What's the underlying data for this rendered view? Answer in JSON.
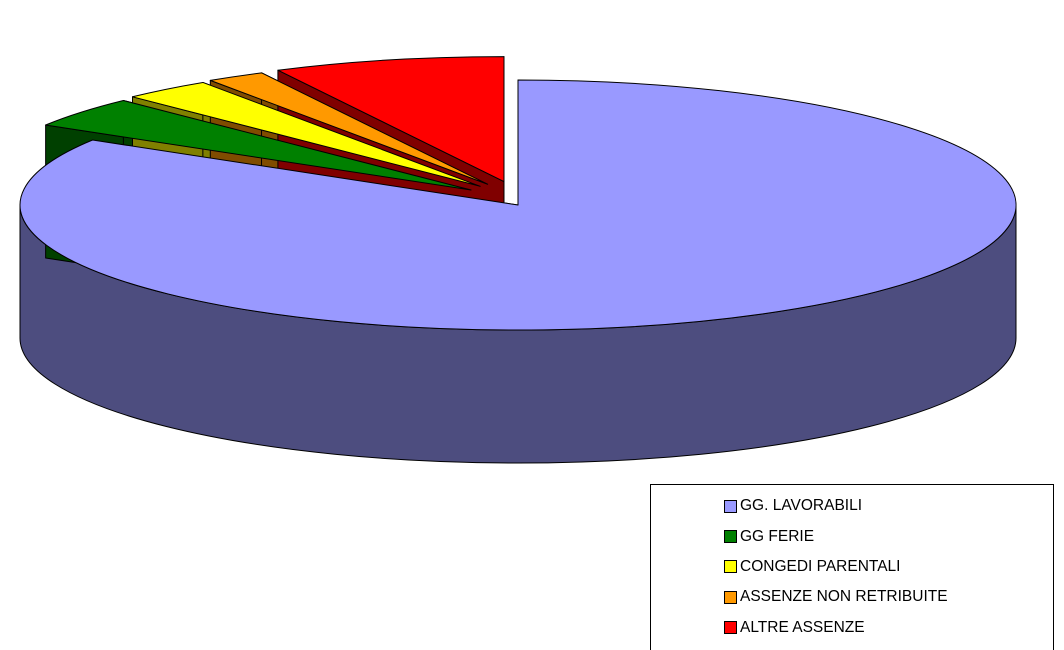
{
  "chart_data": {
    "type": "pie",
    "title": "",
    "categories": [
      "GG. LAVORABILI",
      "GG FERIE",
      "CONGEDI PARENTALI",
      "ASSENZE NON RETRIBUITE",
      "ALTRE ASSENZE"
    ],
    "values": [
      83.7,
      4.0,
      2.9,
      1.9,
      7.5
    ],
    "exploded": [
      false,
      true,
      true,
      true,
      true
    ],
    "colors": [
      "#9999ff",
      "#008000",
      "#ffff00",
      "#ff9900",
      "#ff0000"
    ],
    "side_colors": [
      "#4d4d7f",
      "#004000",
      "#808000",
      "#804c00",
      "#800000"
    ],
    "legend_position": "bottom-right",
    "three_d": true
  }
}
